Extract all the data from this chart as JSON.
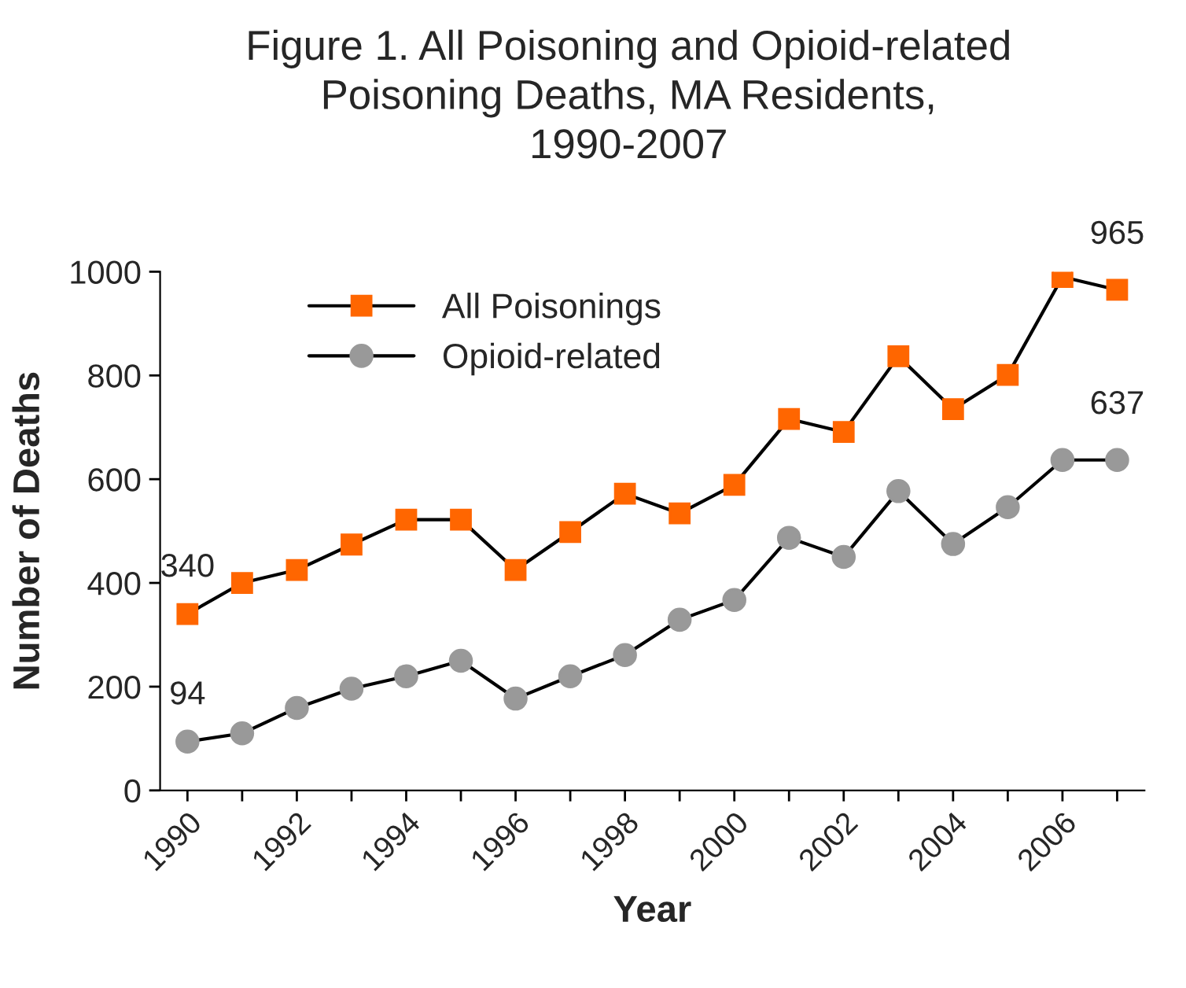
{
  "chart_data": {
    "type": "line",
    "title": "Figure 1. All Poisoning and Opioid-related\nPoisoning Deaths, MA Residents,\n1990-2007",
    "xlabel": "Year",
    "ylabel": "Number of Deaths",
    "categories": [
      "1990",
      null,
      "1992",
      null,
      "1994",
      null,
      "1996",
      null,
      "1998",
      null,
      "2000",
      null,
      "2002",
      null,
      "2004",
      null,
      "2006",
      null
    ],
    "series": [
      {
        "name": "All Poisonings",
        "color": "#ff6600",
        "marker": "square",
        "values": [
          340,
          400,
          425,
          474,
          522,
          522,
          425,
          498,
          572,
          534,
          589,
          716,
          691,
          837,
          735,
          801,
          990,
          965
        ]
      },
      {
        "name": "Opioid-related",
        "color": "#999999",
        "marker": "circle",
        "values": [
          94,
          110,
          159,
          196,
          220,
          250,
          177,
          220,
          261,
          329,
          367,
          487,
          450,
          577,
          475,
          546,
          637,
          637
        ]
      }
    ],
    "annotations": [
      {
        "text": "340",
        "x": "1990",
        "y": 340
      },
      {
        "text": "94",
        "x": "1990",
        "y": 94
      },
      {
        "text": "965",
        "y": 965
      },
      {
        "text": "637",
        "y": 637
      }
    ],
    "ylim": [
      0,
      1000
    ],
    "yticks": [
      0,
      200,
      400,
      600,
      800,
      1000
    ],
    "grid": false,
    "legend": "top left",
    "line_style": "solid"
  }
}
